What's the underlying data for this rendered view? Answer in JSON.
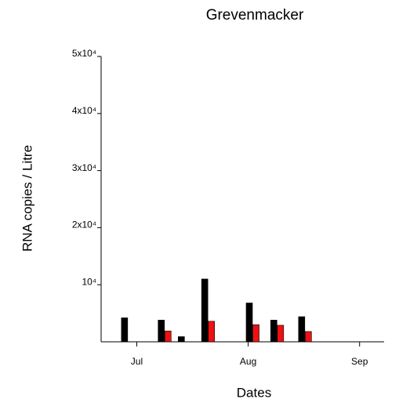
{
  "chart_data": {
    "type": "bar",
    "title": "Grevenmacker",
    "x_label": "Dates",
    "y_label": "RNA copies / Litre",
    "xlim": [
      6.68,
      9.22
    ],
    "xticks": [
      {
        "value": 7,
        "label": "Jul"
      },
      {
        "value": 8,
        "label": "Aug"
      },
      {
        "value": 9,
        "label": "Sep"
      }
    ],
    "ylim": [
      0,
      50000
    ],
    "yticks": [
      {
        "value": 10000,
        "label": "10⁴"
      },
      {
        "value": 20000,
        "label": "2x10⁴"
      },
      {
        "value": 30000,
        "label": "3x10⁴"
      },
      {
        "value": 40000,
        "label": "4x10⁴"
      },
      {
        "value": 50000,
        "label": "5x10⁴"
      }
    ],
    "series": [
      {
        "color": "#000000",
        "x": [
          6.89,
          7.22,
          7.4,
          7.61,
          8.01,
          8.23,
          8.48
        ],
        "values": [
          4200,
          3800,
          900,
          11000,
          6800,
          3800,
          4400
        ]
      },
      {
        "color": "#ee1111",
        "x": [
          7.28,
          7.67,
          8.07,
          8.29,
          8.54
        ],
        "values": [
          1900,
          3600,
          3000,
          2900,
          1800
        ]
      }
    ]
  }
}
